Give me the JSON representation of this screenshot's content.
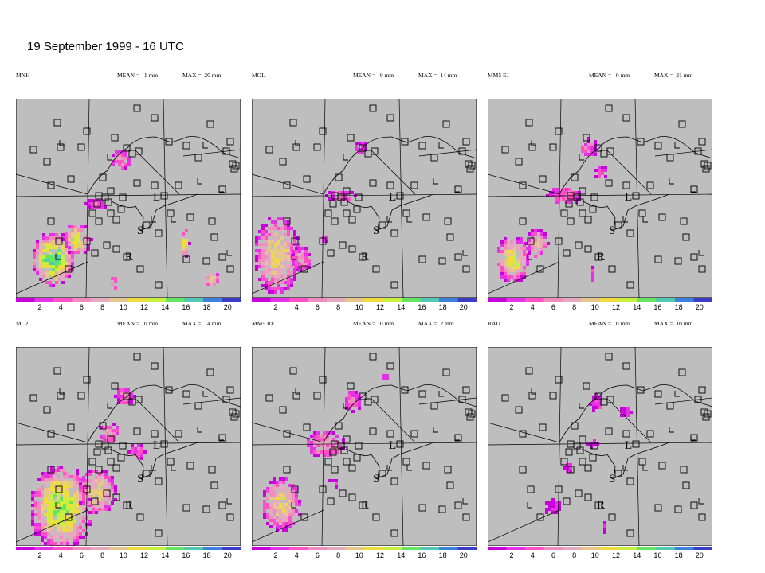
{
  "title": "19 September 1999 - 16 UTC",
  "colors": {
    "map_bg": "#bebebe",
    "scale": [
      "#c800dc",
      "#e632e6",
      "#ff50c8",
      "#f08cbe",
      "#e6aabe",
      "#e6c88c",
      "#f0dc3c",
      "#c8f03c",
      "#64e664",
      "#50c8b4",
      "#3c82dc",
      "#3c3cc8"
    ]
  },
  "scale_ticks": [
    "2",
    "4",
    "6",
    "8",
    "10",
    "12",
    "14",
    "16",
    "18",
    "20"
  ],
  "map_labels": {
    "r": "R",
    "l": "L",
    "s": "S"
  },
  "panels": [
    {
      "model": "MNH",
      "mean_label": "MEAN =",
      "mean_value": "1 mm",
      "max_label": "MAX =",
      "max_value": "20 mm"
    },
    {
      "model": "MOL",
      "mean_label": "MEAN =",
      "mean_value": "0 mm",
      "max_label": "MAX =",
      "max_value": "14 mm"
    },
    {
      "model": "MM5 E1",
      "mean_label": "MEAN =",
      "mean_value": "0 mm",
      "max_label": "MAX =",
      "max_value": "21 mm"
    },
    {
      "model": "MC2",
      "mean_label": "MEAN =",
      "mean_value": "0 mm",
      "max_label": "MAX =",
      "max_value": "14 mm"
    },
    {
      "model": "MM5 RE",
      "mean_label": "MEAN =",
      "mean_value": "0 mm",
      "max_label": "MAX =",
      "max_value": "2 mm"
    },
    {
      "model": "RAD",
      "mean_label": "MEAN =",
      "mean_value": "0 mm",
      "max_label": "MAX =",
      "max_value": "10 mm"
    }
  ]
}
